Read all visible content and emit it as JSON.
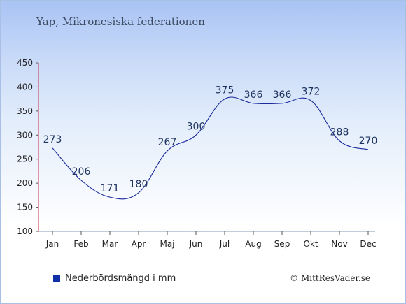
{
  "chart_data": {
    "type": "line",
    "title": "Yap, Mikronesiska federationen",
    "categories": [
      "Jan",
      "Feb",
      "Mar",
      "Apr",
      "Maj",
      "Jun",
      "Jul",
      "Aug",
      "Sep",
      "Okt",
      "Nov",
      "Dec"
    ],
    "series": [
      {
        "name": "Nederbördsmängd i mm",
        "values": [
          273,
          206,
          171,
          180,
          267,
          300,
          375,
          366,
          366,
          372,
          288,
          270
        ]
      }
    ],
    "ylim": [
      100,
      450
    ],
    "yticks": [
      100,
      150,
      200,
      250,
      300,
      350,
      400,
      450
    ],
    "grid": false,
    "legend_position": "bottom-left",
    "line_color": "#1a2a9c"
  },
  "legend": {
    "label": "Nederbördsmängd i mm",
    "swatch_color": "#1030a8"
  },
  "credit": "© MittResVader.se"
}
